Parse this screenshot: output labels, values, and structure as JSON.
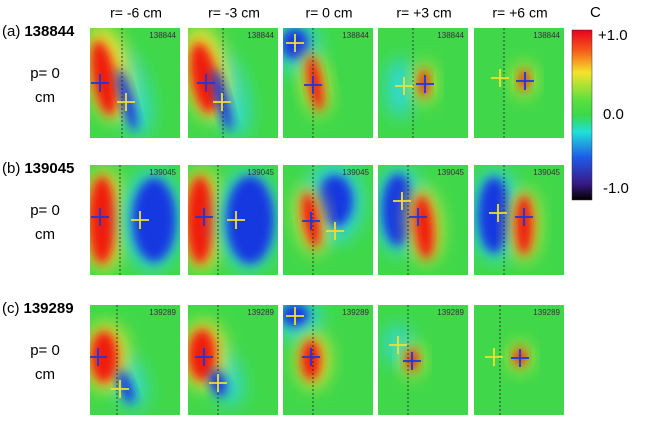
{
  "columns": [
    "r= -6 cm",
    "r= -3 cm",
    "r= 0 cm",
    "r= +3 cm",
    "r= +6 cm"
  ],
  "rows": [
    {
      "letter": "(a)",
      "id": "138844",
      "position": "p= 0",
      "unit": "cm"
    },
    {
      "letter": "(b)",
      "id": "139045",
      "position": "p= 0",
      "unit": "cm"
    },
    {
      "letter": "(c)",
      "id": "139289",
      "position": "p= 0",
      "unit": "cm"
    }
  ],
  "colorbar": {
    "title": "C",
    "ticks": [
      "+1.0",
      "0.0",
      "-1.0"
    ]
  }
}
